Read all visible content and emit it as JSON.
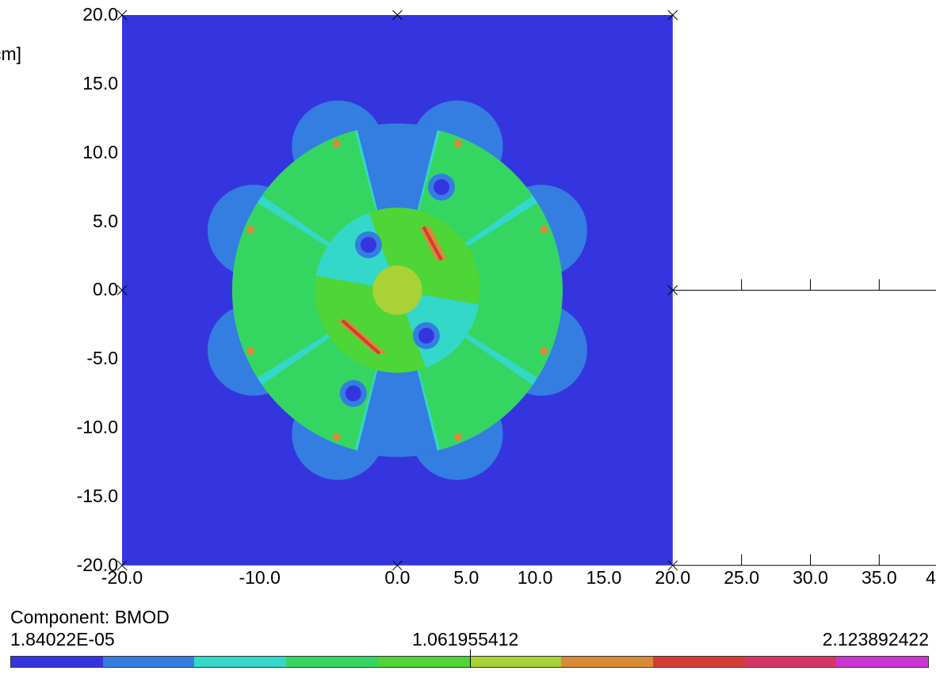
{
  "chart_data": {
    "type": "heatmap",
    "title": "",
    "axis_unit_fragment": "cm]",
    "xlim": [
      -20,
      40
    ],
    "ylim": [
      -20,
      20
    ],
    "x_ticks": [
      "-20.0",
      "-10.0",
      "0.0",
      "5.0",
      "10.0",
      "15.0",
      "20.0",
      "25.0",
      "30.0",
      "35.0",
      "4"
    ],
    "y_ticks": [
      "20.0",
      "15.0",
      "10.0",
      "5.0",
      "0.0",
      "-5.0",
      "-10.0",
      "-15.0",
      "-20.0"
    ],
    "field_domain": {
      "x": [
        -20,
        20
      ],
      "y": [
        -20,
        20
      ]
    },
    "pattern_outer_radius": 12.0,
    "pattern_inner_radius": 6.0,
    "pattern_core_radius": 1.8,
    "legend": {
      "title": "Component: BMOD",
      "min_label": "1.84022E-05",
      "mid_label": "1.061955412",
      "max_label": "2.123892422",
      "min": 1.84022e-05,
      "mid": 1.061955412,
      "max": 2.123892422,
      "colors": [
        "#3535e0",
        "#337ee0",
        "#33d8c8",
        "#35d562",
        "#4ed537",
        "#a8d235",
        "#d88a35",
        "#d63b35",
        "#d63566",
        "#cc35d2"
      ]
    }
  }
}
